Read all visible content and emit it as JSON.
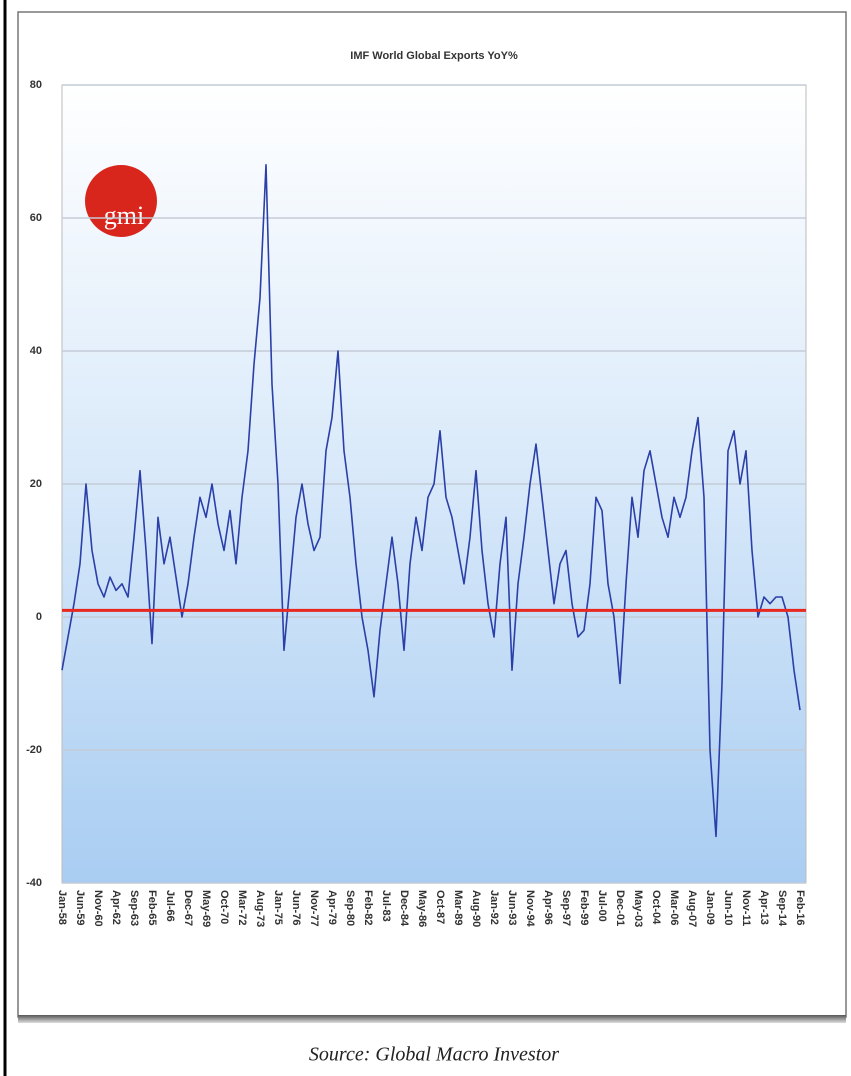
{
  "chart_data": {
    "type": "line",
    "title": "IMF World Global Exports YoY%",
    "logo": "gmi",
    "source": "Source:  Global Macro Investor",
    "categories": [
      "Jan-58",
      null,
      null,
      "Jun-59",
      null,
      null,
      "Nov-60",
      null,
      null,
      "Apr-62",
      null,
      null,
      "Sep-63",
      null,
      null,
      "Feb-65",
      null,
      null,
      "Jul-66",
      null,
      null,
      "Dec-67",
      null,
      null,
      "May-69",
      null,
      null,
      "Oct-70",
      null,
      null,
      "Mar-72",
      null,
      null,
      "Aug-73",
      null,
      null,
      "Jan-75",
      null,
      null,
      "Jun-76",
      null,
      null,
      "Nov-77",
      null,
      null,
      "Apr-79",
      null,
      null,
      "Sep-80",
      null,
      null,
      "Feb-82",
      null,
      null,
      "Jul-83",
      null,
      null,
      "Dec-84",
      null,
      null,
      "May-86",
      null,
      null,
      "Oct-87",
      null,
      null,
      "Mar-89",
      null,
      null,
      "Aug-90",
      null,
      null,
      "Jan-92",
      null,
      null,
      "Jun-93",
      null,
      null,
      "Nov-94",
      null,
      null,
      "Apr-96",
      null,
      null,
      "Sep-97",
      null,
      null,
      "Feb-99",
      null,
      null,
      "Jul-00",
      null,
      null,
      "Dec-01",
      null,
      null,
      "May-03",
      null,
      null,
      "Oct-04",
      null,
      null,
      "Mar-06",
      null,
      null,
      "Aug-07",
      null,
      null,
      "Jan-09",
      null,
      null,
      "Jun-10",
      null,
      null,
      "Nov-11",
      null,
      null,
      "Apr-13",
      null,
      null,
      "Sep-14",
      null,
      null,
      "Feb-16"
    ],
    "series": [
      {
        "color": "#2b3fa8",
        "values": [
          -8,
          -3,
          2,
          8,
          20,
          10,
          5,
          3,
          6,
          4,
          5,
          3,
          12,
          22,
          10,
          -4,
          15,
          8,
          12,
          6,
          0,
          5,
          12,
          18,
          15,
          20,
          14,
          10,
          16,
          8,
          18,
          25,
          38,
          48,
          68,
          35,
          20,
          -5,
          5,
          15,
          20,
          14,
          10,
          12,
          25,
          30,
          40,
          25,
          18,
          8,
          0,
          -5,
          -12,
          -2,
          5,
          12,
          5,
          -5,
          8,
          15,
          10,
          18,
          20,
          28,
          18,
          15,
          10,
          5,
          12,
          22,
          10,
          2,
          -3,
          8,
          15,
          -8,
          5,
          12,
          20,
          26,
          18,
          10,
          2,
          8,
          10,
          2,
          -3,
          -2,
          5,
          18,
          16,
          5,
          0,
          -10,
          5,
          18,
          12,
          22,
          25,
          20,
          15,
          12,
          18,
          15,
          18,
          25,
          30,
          18,
          -20,
          -33,
          -10,
          25,
          28,
          20,
          25,
          10,
          0,
          3,
          2,
          3,
          3,
          0,
          -8,
          -14
        ]
      }
    ],
    "reference_line": {
      "value": 1,
      "color": "#e8281e"
    },
    "ylim": [
      -40,
      80
    ],
    "yticks": [
      -40,
      -20,
      0,
      20,
      40,
      60,
      80
    ],
    "grid": true
  }
}
